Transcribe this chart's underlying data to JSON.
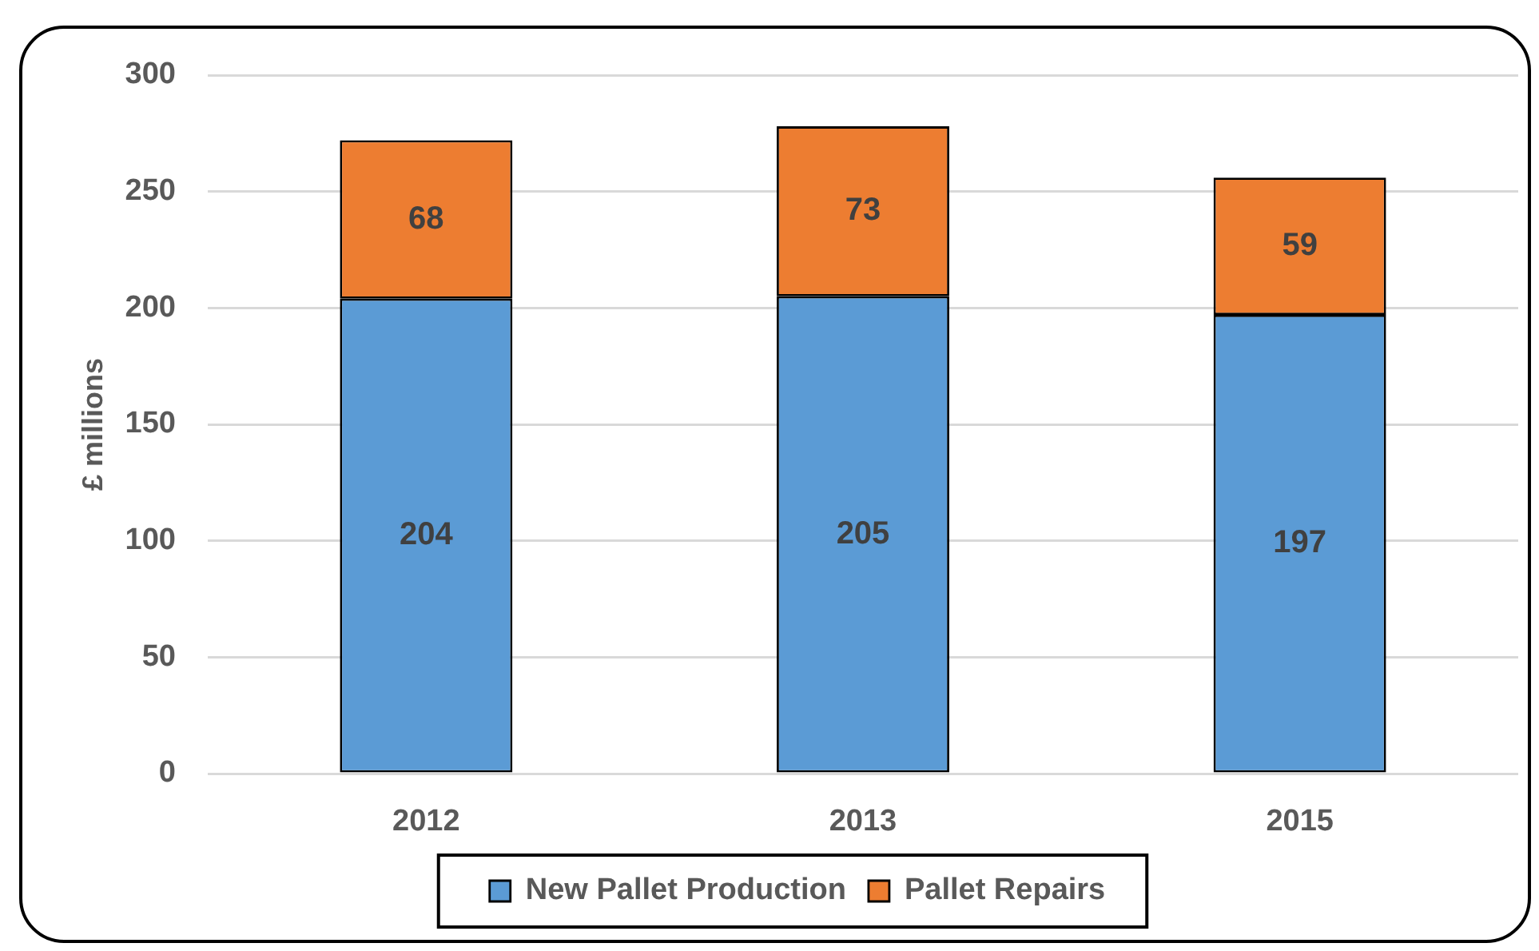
{
  "chart_data": {
    "type": "bar",
    "stacked": true,
    "categories": [
      "2012",
      "2013",
      "2015"
    ],
    "series": [
      {
        "name": "New Pallet Production",
        "color": "#5b9bd5",
        "values": [
          204,
          205,
          197
        ]
      },
      {
        "name": "Pallet Repairs",
        "color": "#ed7d31",
        "values": [
          68,
          73,
          59
        ]
      }
    ],
    "ylabel": "£ millions",
    "ylim": [
      0,
      300
    ],
    "yticks": [
      0,
      50,
      100,
      150,
      200,
      250,
      300
    ],
    "grid": "y",
    "legend": "bottom",
    "data_labels": true
  }
}
